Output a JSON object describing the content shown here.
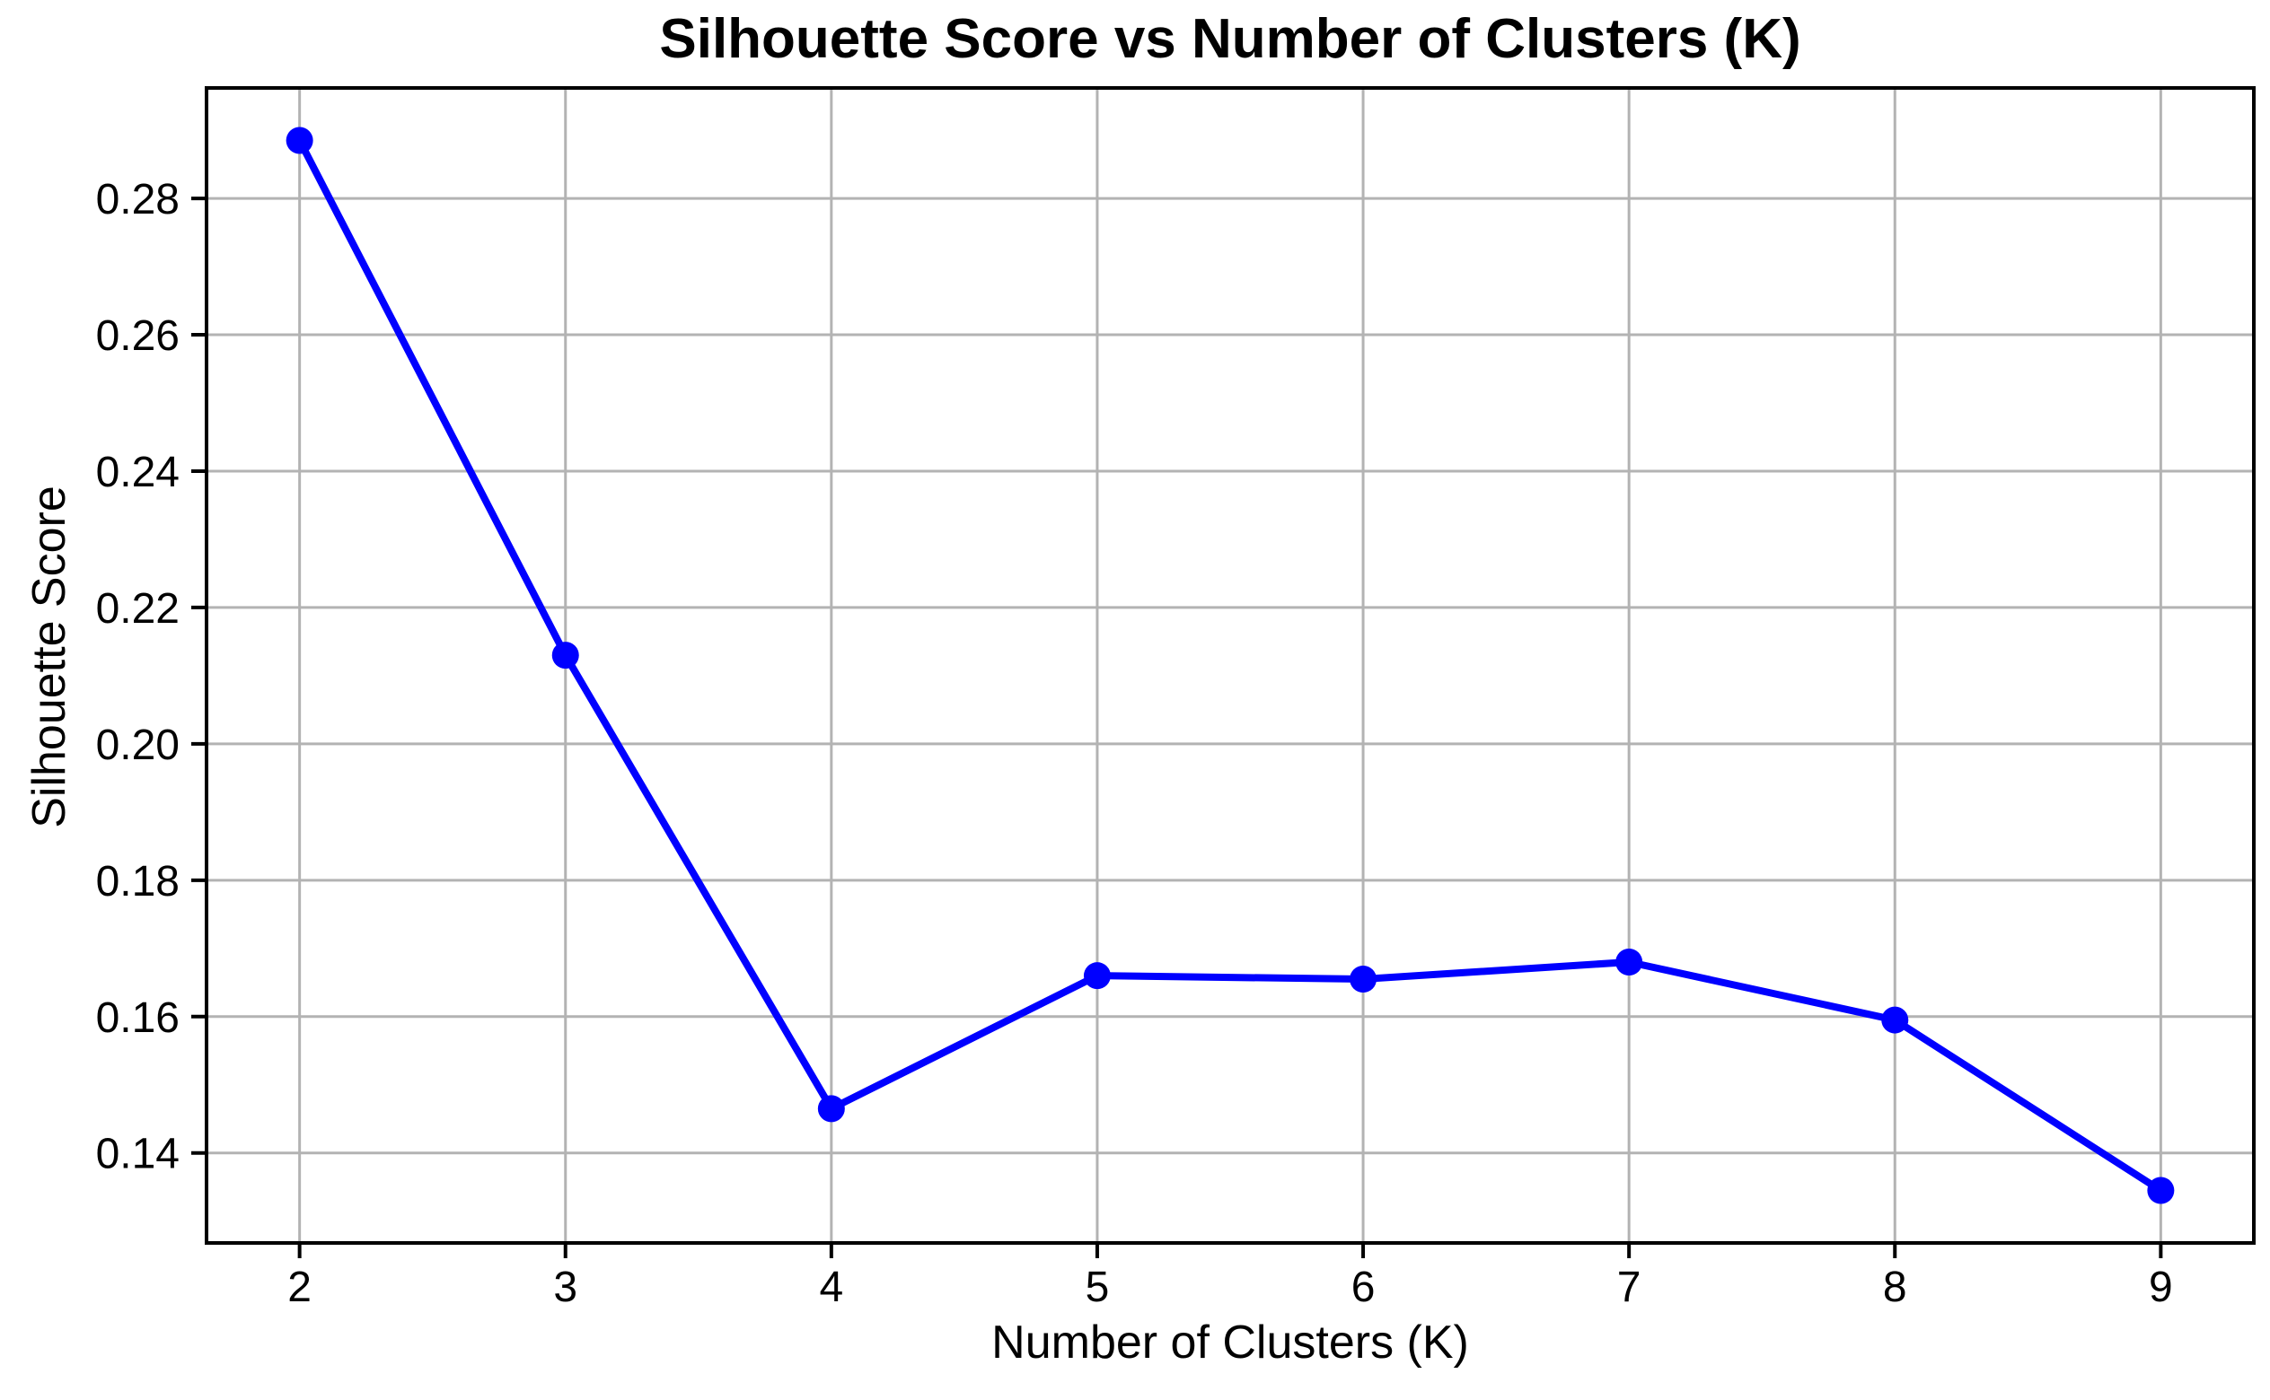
{
  "title": "Silhouette Score vs Number of Clusters (K)",
  "chart_data": {
    "type": "line",
    "title": "Silhouette Score vs Number of Clusters (K)",
    "xlabel": "Number of Clusters (K)",
    "ylabel": "Silhouette Score",
    "x": [
      2,
      3,
      4,
      5,
      6,
      7,
      8,
      9
    ],
    "y": [
      0.2885,
      0.213,
      0.1465,
      0.166,
      0.1655,
      0.168,
      0.1595,
      0.1345
    ],
    "x_ticks": [
      2,
      3,
      4,
      5,
      6,
      7,
      8,
      9
    ],
    "x_tick_labels": [
      "2",
      "3",
      "4",
      "5",
      "6",
      "7",
      "8",
      "9"
    ],
    "y_ticks": [
      0.14,
      0.16,
      0.18,
      0.2,
      0.22,
      0.24,
      0.26,
      0.28
    ],
    "y_tick_labels": [
      "0.14",
      "0.16",
      "0.18",
      "0.20",
      "0.22",
      "0.24",
      "0.26",
      "0.28"
    ],
    "xlim": [
      1.65,
      9.35
    ],
    "ylim": [
      0.1268,
      0.2962
    ],
    "grid": true,
    "legend": "none",
    "line_color": "#0000ff",
    "marker": "circle",
    "marker_color": "#0000ff",
    "grid_color": "#b3b3b3",
    "axis_color": "#000000",
    "background_color": "#ffffff"
  }
}
